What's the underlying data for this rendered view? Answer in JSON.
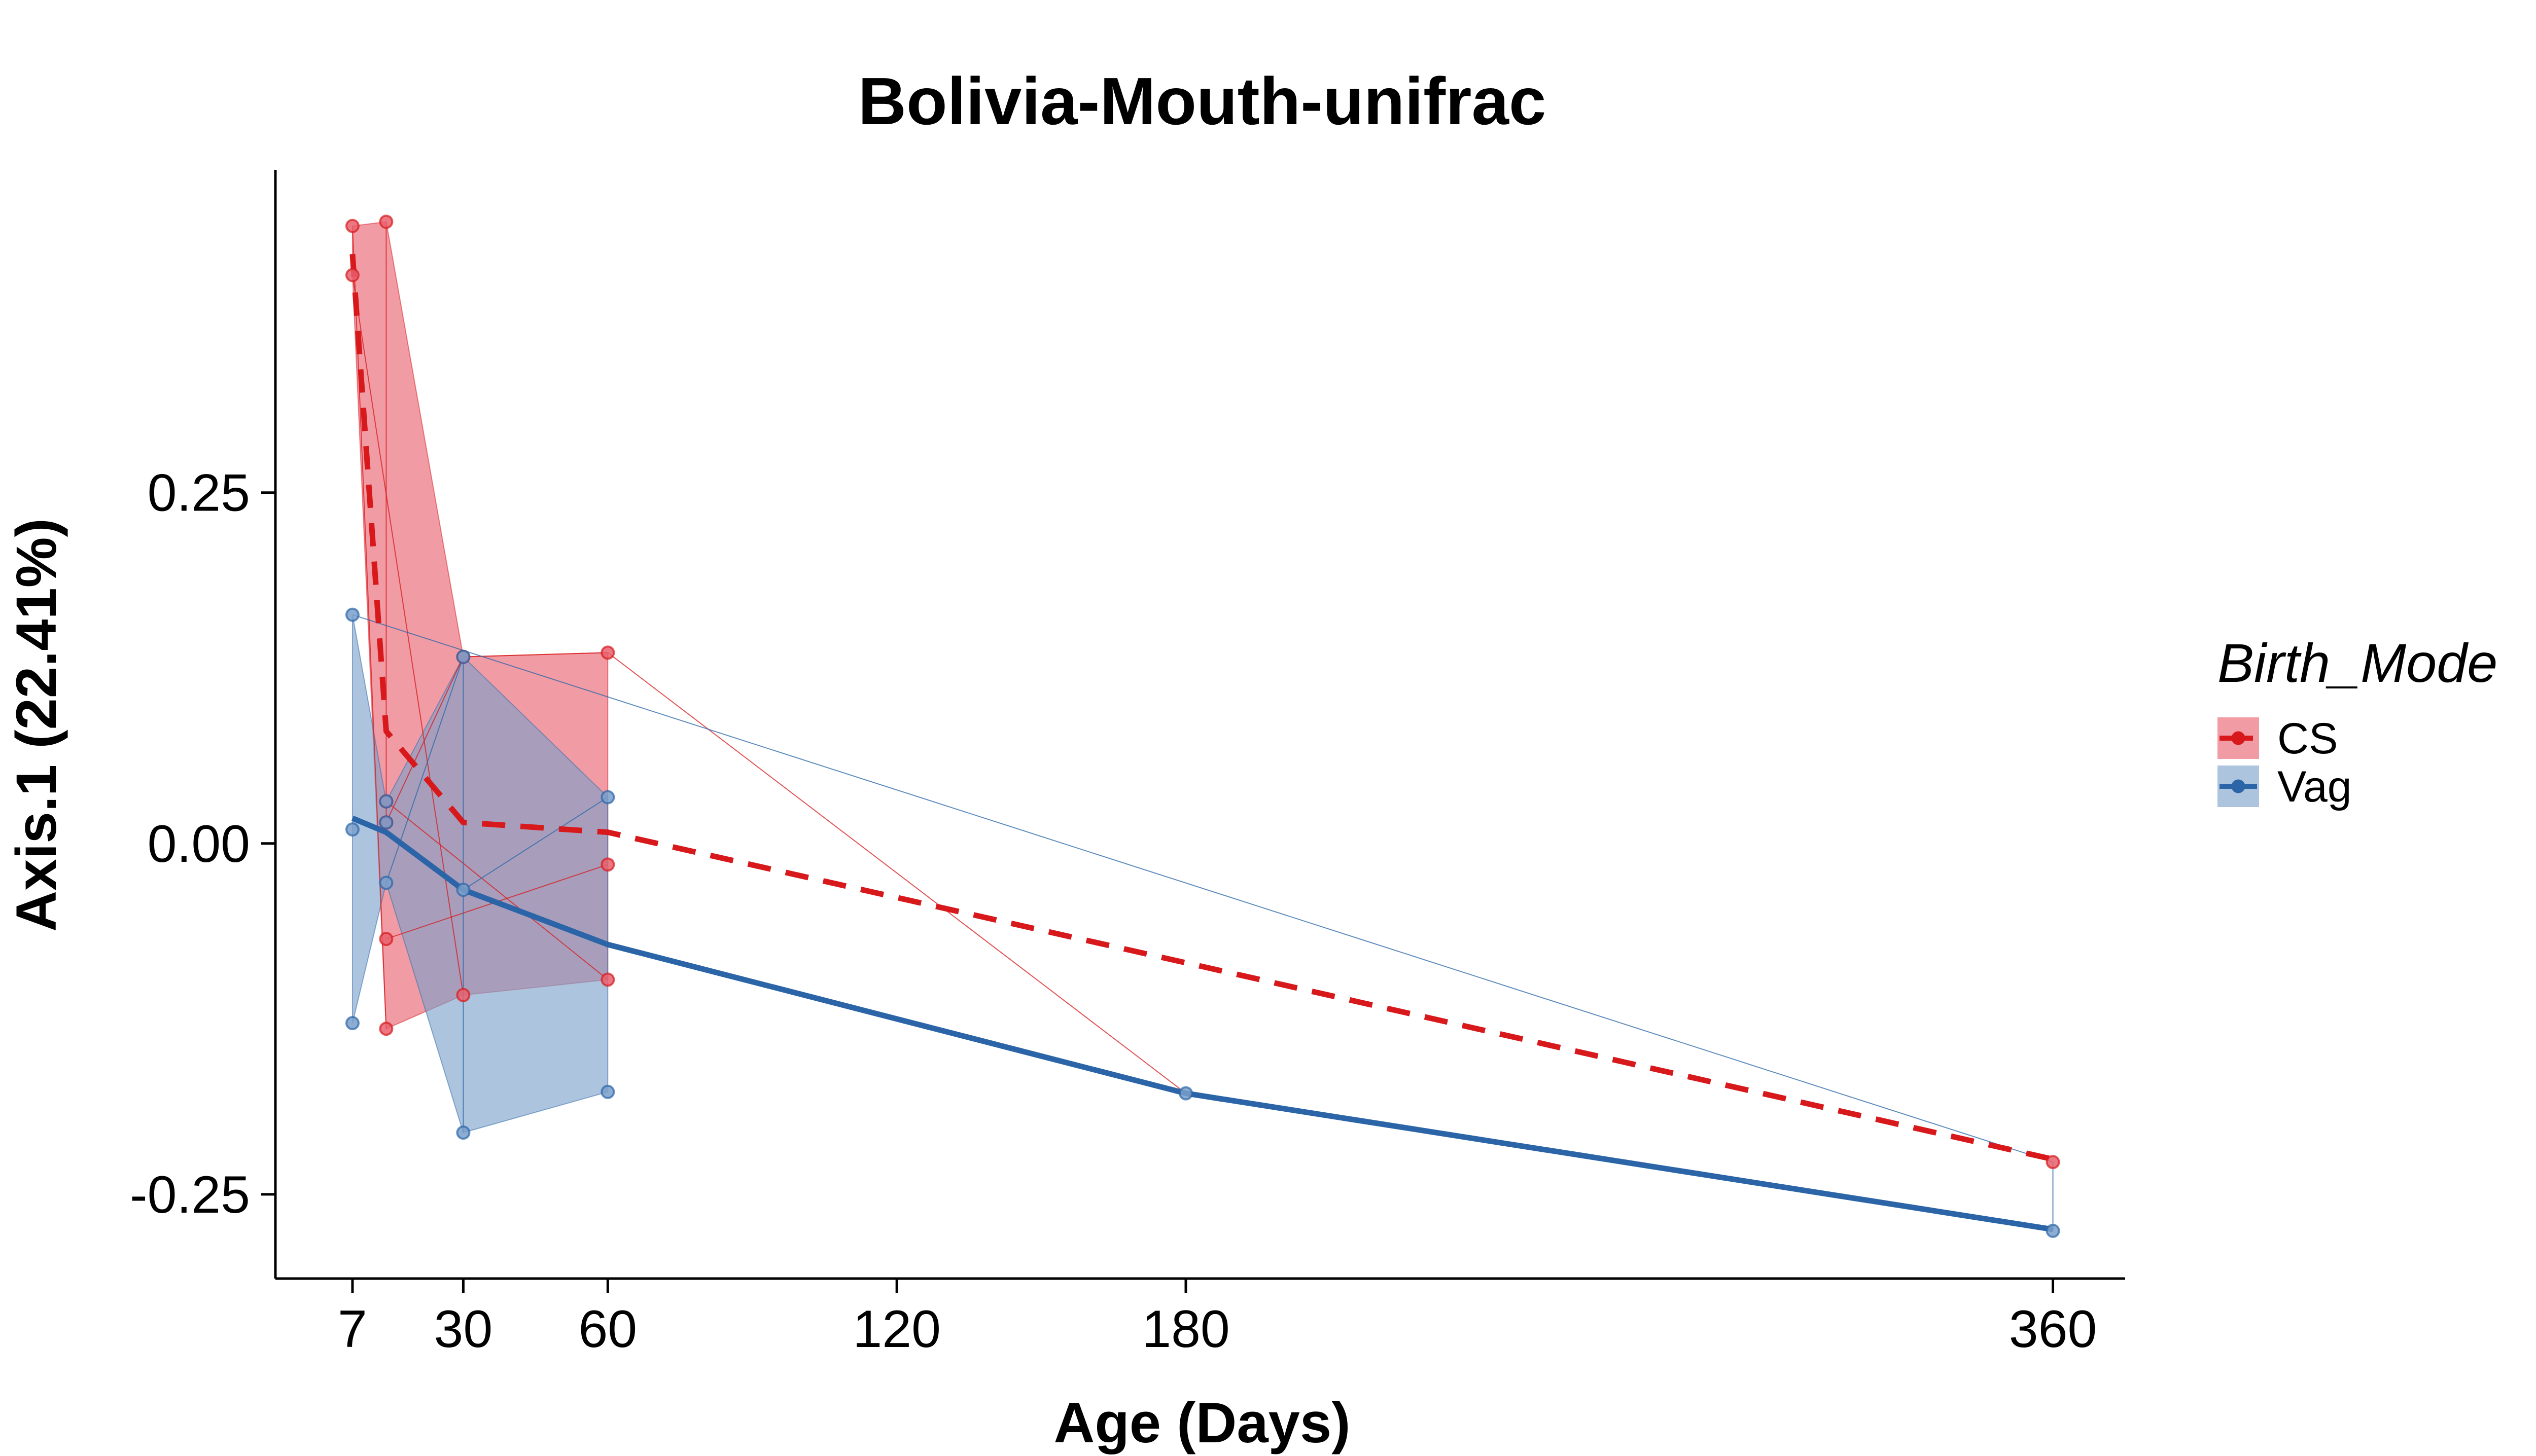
{
  "chart_data": {
    "type": "line",
    "title": "Bolivia-Mouth-unifrac",
    "xlabel": "Age (Days)",
    "ylabel": "Axis.1 (22.41%)",
    "xlim": [
      -9,
      375
    ],
    "ylim": [
      -0.31,
      0.48
    ],
    "x_ticks": [
      {
        "value": 7,
        "label": "7"
      },
      {
        "value": 30,
        "label": "30"
      },
      {
        "value": 60,
        "label": "60"
      },
      {
        "value": 120,
        "label": "120"
      },
      {
        "value": 180,
        "label": "180"
      },
      {
        "value": 360,
        "label": "360"
      }
    ],
    "y_ticks": [
      {
        "value": 0.25,
        "label": "0.25"
      },
      {
        "value": 0.0,
        "label": "0.00"
      },
      {
        "value": -0.25,
        "label": "-0.25"
      }
    ],
    "grid": false,
    "legend": {
      "title": "Birth_Mode",
      "position": "right",
      "entries": [
        {
          "label": "CS",
          "color": "#d7191c"
        },
        {
          "label": "Vag",
          "color": "#2b65a8"
        }
      ]
    },
    "series": [
      {
        "name": "CS",
        "color": "#d7191c",
        "fill": "#e8606d",
        "line_style": "dashed",
        "mean_line": [
          {
            "x": 7,
            "y": 0.42
          },
          {
            "x": 14,
            "y": 0.08
          },
          {
            "x": 30,
            "y": 0.015
          },
          {
            "x": 60,
            "y": 0.008
          },
          {
            "x": 180,
            "y": -0.085
          },
          {
            "x": 360,
            "y": -0.225
          }
        ],
        "points": [
          {
            "x": 7,
            "y": 0.44
          },
          {
            "x": 7,
            "y": 0.405
          },
          {
            "x": 14,
            "y": 0.443
          },
          {
            "x": 14,
            "y": 0.03
          },
          {
            "x": 14,
            "y": 0.015
          },
          {
            "x": 14,
            "y": -0.068
          },
          {
            "x": 14,
            "y": -0.132
          },
          {
            "x": 30,
            "y": 0.133
          },
          {
            "x": 30,
            "y": -0.108
          },
          {
            "x": 60,
            "y": 0.136
          },
          {
            "x": 60,
            "y": -0.015
          },
          {
            "x": 60,
            "y": -0.097
          },
          {
            "x": 360,
            "y": -0.227
          }
        ],
        "hull": [
          {
            "x": 7,
            "y": 0.44
          },
          {
            "x": 14,
            "y": 0.443
          },
          {
            "x": 30,
            "y": 0.133
          },
          {
            "x": 60,
            "y": 0.136
          },
          {
            "x": 60,
            "y": -0.097
          },
          {
            "x": 30,
            "y": -0.108
          },
          {
            "x": 14,
            "y": -0.132
          },
          {
            "x": 7,
            "y": 0.405
          }
        ],
        "connectors": [
          [
            {
              "x": 7,
              "y": 0.44
            },
            {
              "x": 14,
              "y": -0.132
            }
          ],
          [
            {
              "x": 7,
              "y": 0.405
            },
            {
              "x": 30,
              "y": -0.108
            }
          ],
          [
            {
              "x": 14,
              "y": 0.443
            },
            {
              "x": 14,
              "y": 0.015
            }
          ],
          [
            {
              "x": 14,
              "y": 0.015
            },
            {
              "x": 30,
              "y": 0.133
            }
          ],
          [
            {
              "x": 14,
              "y": -0.068
            },
            {
              "x": 60,
              "y": -0.015
            }
          ],
          [
            {
              "x": 30,
              "y": 0.133
            },
            {
              "x": 60,
              "y": 0.136
            }
          ],
          [
            {
              "x": 60,
              "y": 0.136
            },
            {
              "x": 180,
              "y": -0.178
            }
          ],
          [
            {
              "x": 14,
              "y": 0.03
            },
            {
              "x": 60,
              "y": -0.097
            }
          ]
        ]
      },
      {
        "name": "Vag",
        "color": "#2b65a8",
        "fill": "#7a9fca",
        "line_style": "solid",
        "mean_line": [
          {
            "x": 7,
            "y": 0.018
          },
          {
            "x": 14,
            "y": 0.008
          },
          {
            "x": 30,
            "y": -0.033
          },
          {
            "x": 60,
            "y": -0.072
          },
          {
            "x": 180,
            "y": -0.178
          },
          {
            "x": 360,
            "y": -0.275
          }
        ],
        "points": [
          {
            "x": 7,
            "y": 0.163
          },
          {
            "x": 7,
            "y": 0.01
          },
          {
            "x": 7,
            "y": -0.128
          },
          {
            "x": 14,
            "y": 0.03
          },
          {
            "x": 14,
            "y": 0.015
          },
          {
            "x": 14,
            "y": -0.028
          },
          {
            "x": 30,
            "y": 0.133
          },
          {
            "x": 30,
            "y": -0.033
          },
          {
            "x": 30,
            "y": -0.206
          },
          {
            "x": 60,
            "y": 0.033
          },
          {
            "x": 60,
            "y": -0.177
          },
          {
            "x": 180,
            "y": -0.178
          },
          {
            "x": 360,
            "y": -0.276
          }
        ],
        "hull": [
          {
            "x": 7,
            "y": 0.163
          },
          {
            "x": 14,
            "y": 0.03
          },
          {
            "x": 30,
            "y": 0.133
          },
          {
            "x": 60,
            "y": 0.033
          },
          {
            "x": 60,
            "y": -0.177
          },
          {
            "x": 30,
            "y": -0.206
          },
          {
            "x": 14,
            "y": -0.028
          },
          {
            "x": 7,
            "y": -0.128
          }
        ],
        "connectors": [
          [
            {
              "x": 7,
              "y": 0.163
            },
            {
              "x": 360,
              "y": -0.227
            }
          ],
          [
            {
              "x": 14,
              "y": -0.028
            },
            {
              "x": 30,
              "y": 0.133
            }
          ],
          [
            {
              "x": 30,
              "y": 0.133
            },
            {
              "x": 30,
              "y": -0.206
            }
          ],
          [
            {
              "x": 30,
              "y": -0.033
            },
            {
              "x": 60,
              "y": 0.033
            }
          ],
          [
            {
              "x": 360,
              "y": -0.227
            },
            {
              "x": 360,
              "y": -0.276
            }
          ]
        ]
      }
    ]
  }
}
